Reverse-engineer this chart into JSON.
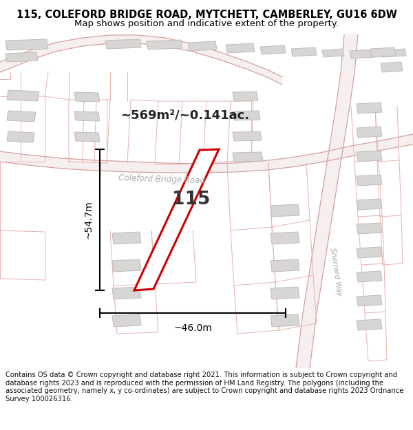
{
  "title": "115, COLEFORD BRIDGE ROAD, MYTCHETT, CAMBERLEY, GU16 6DW",
  "subtitle": "Map shows position and indicative extent of the property.",
  "copyright": "Contains OS data © Crown copyright and database right 2021. This information is subject to Crown copyright and database rights 2023 and is reproduced with the permission of HM Land Registry. The polygons (including the associated geometry, namely x, y co-ordinates) are subject to Crown copyright and database rights 2023 Ordnance Survey 100026316.",
  "property_label": "115",
  "area_label": "~569m²/~0.141ac.",
  "width_label": "~46.0m",
  "height_label": "~54.7m",
  "title_fontsize": 10.5,
  "subtitle_fontsize": 9.5,
  "copyright_fontsize": 7.2,
  "map_bg": "#fafafa",
  "road_fill": "#f5efef",
  "road_line": "#d4a0a0",
  "lc": "#e8b0b0",
  "building_fill": "#d8d5d5",
  "building_edge": "#c0bcbc",
  "property_edge": "#cc0000",
  "property_fill": "#ffffff",
  "road_label_color": "#b0a8a8",
  "meas_color": "#222222",
  "label_color": "#333333",
  "area_label_color": "#222222"
}
